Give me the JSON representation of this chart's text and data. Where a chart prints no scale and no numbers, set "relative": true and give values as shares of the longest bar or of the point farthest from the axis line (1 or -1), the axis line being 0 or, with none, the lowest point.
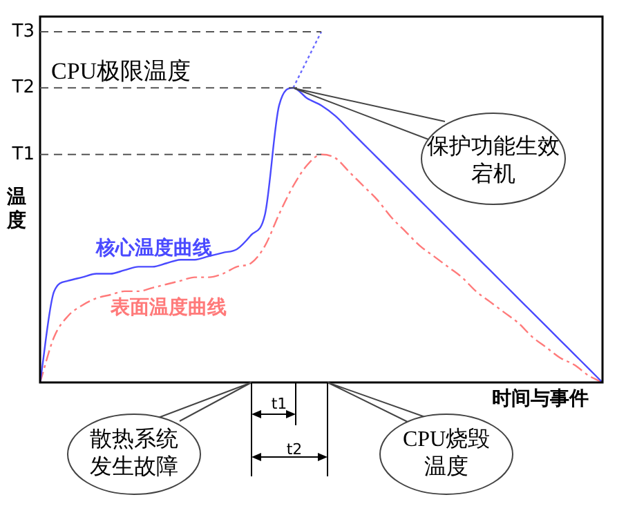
{
  "chart_data": {
    "type": "line",
    "relative": true,
    "xlabel": "时间与事件",
    "ylabel": "温度",
    "legend": false,
    "categories": [
      null,
      null,
      null,
      null,
      null,
      null,
      null,
      null,
      null,
      null,
      null,
      null,
      null,
      null,
      null,
      null,
      null,
      null,
      null,
      null,
      null,
      null,
      null,
      null,
      null,
      null,
      null,
      null,
      null,
      null,
      null,
      null,
      null,
      null,
      null,
      null,
      null,
      null,
      null,
      null,
      null
    ],
    "series": [
      {
        "name": "核心温度曲线",
        "color": "#4a4aff",
        "line_style": "solid",
        "values": [
          0,
          0.26,
          0.29,
          0.3,
          0.31,
          0.31,
          0.32,
          0.33,
          0.33,
          0.34,
          0.35,
          0.35,
          0.36,
          0.37,
          0.38,
          0.42,
          0.48,
          0.79,
          0.84,
          0.81,
          0.79,
          0.76,
          0.72,
          0.68,
          0.64,
          0.6,
          0.56,
          0.52,
          0.48,
          0.44,
          0.4,
          0.36,
          0.32,
          0.28,
          0.24,
          0.2,
          0.16,
          0.12,
          0.08,
          0.04,
          0
        ]
      },
      {
        "color": "#6a6aff",
        "line_style": "dotted",
        "values": [
          null,
          null,
          null,
          null,
          null,
          null,
          null,
          null,
          null,
          null,
          null,
          null,
          null,
          null,
          null,
          null,
          null,
          null,
          0.84,
          0.92,
          1,
          null,
          null,
          null,
          null,
          null,
          null,
          null,
          null,
          null,
          null,
          null,
          null,
          null,
          null,
          null,
          null,
          null,
          null,
          null,
          null
        ]
      },
      {
        "name": "表面温度曲线",
        "color": "#ff7a7a",
        "line_style": "dashed",
        "values": [
          0,
          0.13,
          0.19,
          0.22,
          0.24,
          0.25,
          0.26,
          0.26,
          0.27,
          0.28,
          0.29,
          0.3,
          0.3,
          0.31,
          0.33,
          0.34,
          0.39,
          0.48,
          0.56,
          0.62,
          0.65,
          0.64,
          0.6,
          0.56,
          0.52,
          0.47,
          0.43,
          0.39,
          0.36,
          0.33,
          0.3,
          0.26,
          0.23,
          0.2,
          0.17,
          0.13,
          0.1,
          0.07,
          0.05,
          0.02,
          0
        ]
      }
    ],
    "ref_lines": [
      {
        "axis": "y",
        "value": 0.65,
        "label": "T1",
        "line_style": "dashed"
      },
      {
        "axis": "y",
        "value": 0.84,
        "label": "T2",
        "line_style": "dashed"
      },
      {
        "axis": "y",
        "value": 1,
        "label": "T3",
        "line_style": "dashed"
      }
    ],
    "annotations": [
      {
        "text": "CPU极限温度",
        "y": 0.84
      },
      "保护功能生效宕机",
      "散热系统发生故障",
      "CPU烧毁温度",
      "t1",
      "t2"
    ]
  }
}
